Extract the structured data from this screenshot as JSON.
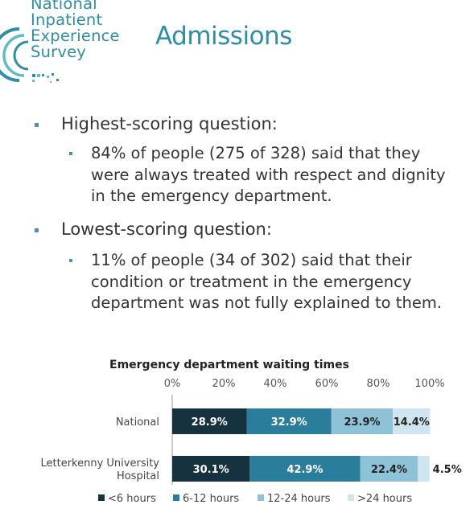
{
  "logo": {
    "lines": [
      "National",
      "Inpatient",
      "Experience",
      "Survey"
    ],
    "colors": {
      "teal": "#2e8ea6",
      "light": "#62b9cc"
    }
  },
  "page_title": "Admissions",
  "highlights": [
    {
      "heading": "Highest-scoring question:",
      "text": "84% of people (275 of 328) said that they were always treated with respect and dignity in the emergency department."
    },
    {
      "heading": "Lowest-scoring question:",
      "text": "11% of people (34 of 302) said that their condition or treatment in the emergency department was not fully explained to them."
    }
  ],
  "chart_data": {
    "type": "bar",
    "orientation": "horizontal",
    "stacked": true,
    "title": "Emergency department waiting times",
    "categories": [
      "National",
      "Letterkenny University Hospital"
    ],
    "category_lines": [
      [
        "National"
      ],
      [
        "Letterkenny University",
        "Hospital"
      ]
    ],
    "xlim": [
      0,
      100
    ],
    "x_ticks": [
      0,
      20,
      40,
      60,
      80,
      100
    ],
    "x_tick_labels": [
      "0%",
      "20%",
      "40%",
      "60%",
      "80%",
      "100%"
    ],
    "legend_position": "bottom",
    "series": [
      {
        "name": "<6 hours",
        "values": [
          28.9,
          30.1
        ],
        "labels": [
          "28.9%",
          "30.1%"
        ],
        "color": "#16323f",
        "label_color": "#ffffff"
      },
      {
        "name": "6-12 hours",
        "values": [
          32.9,
          42.9
        ],
        "labels": [
          "32.9%",
          "42.9%"
        ],
        "color": "#2b7e9b",
        "label_color": "#ffffff"
      },
      {
        "name": "12-24 hours",
        "values": [
          23.9,
          22.4
        ],
        "labels": [
          "23.9%",
          "22.4%"
        ],
        "color": "#8ec3d7",
        "label_color": "#222222"
      },
      {
        "name": ">24 hours",
        "values": [
          14.4,
          4.5
        ],
        "labels": [
          "14.4%",
          "4.5%"
        ],
        "color": "#cfe6f0",
        "label_color": "#222222"
      }
    ]
  }
}
